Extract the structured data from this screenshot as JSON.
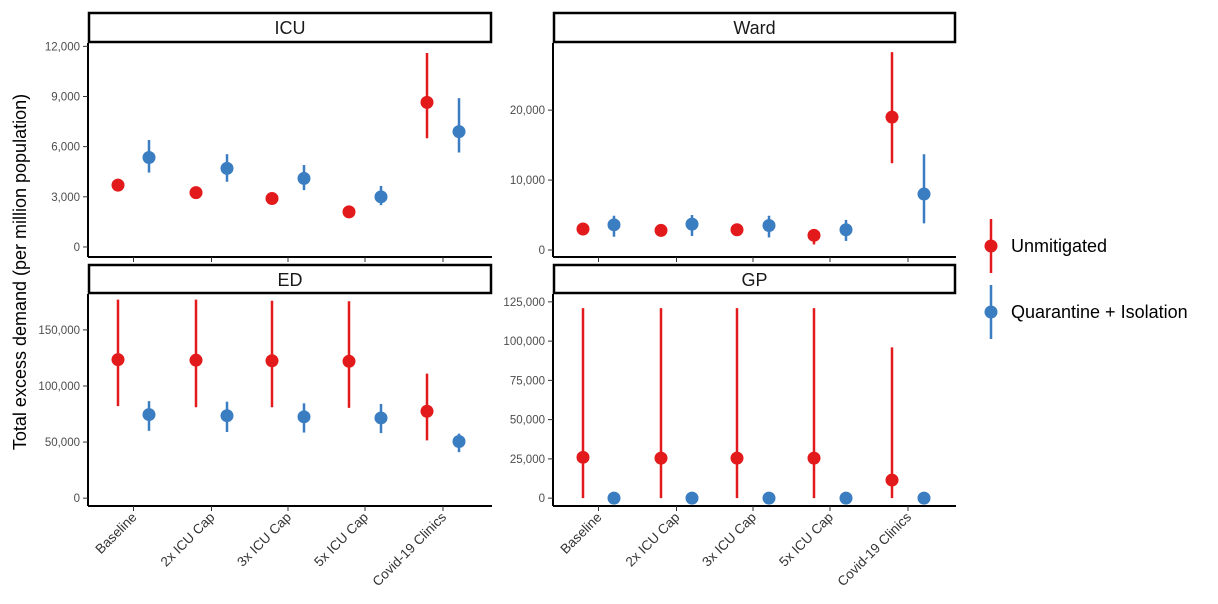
{
  "chart_data": {
    "type": "scatter",
    "ylabel": "Total excess demand (per million population)",
    "categories": [
      "Baseline",
      "2x ICU Cap",
      "3x ICU Cap",
      "5x ICU Cap",
      "Covid-19 Clinics"
    ],
    "legend": {
      "position": "right",
      "items": [
        {
          "name": "Unmitigated",
          "color": "#e31a1c"
        },
        {
          "name": "Quarantine + Isolation",
          "color": "#3a7dc1"
        }
      ]
    },
    "panels": [
      {
        "title": "ICU",
        "ylim": [
          -600,
          12200
        ],
        "ticks": [
          {
            "v": 0,
            "l": "0"
          },
          {
            "v": 3000,
            "l": "3,000"
          },
          {
            "v": 6000,
            "l": "6,000"
          },
          {
            "v": 9000,
            "l": "9,000"
          },
          {
            "v": 12000,
            "l": "12,000"
          }
        ],
        "series": [
          {
            "name": "Unmitigated",
            "points": [
              {
                "y": 3700,
                "lo": 3500,
                "hi": 3900
              },
              {
                "y": 3250,
                "lo": 3100,
                "hi": 3400
              },
              {
                "y": 2900,
                "lo": 2750,
                "hi": 3050
              },
              {
                "y": 2100,
                "lo": 2000,
                "hi": 2200
              },
              {
                "y": 8650,
                "lo": 6500,
                "hi": 11600
              }
            ]
          },
          {
            "name": "Quarantine + Isolation",
            "points": [
              {
                "y": 5350,
                "lo": 4450,
                "hi": 6400
              },
              {
                "y": 4700,
                "lo": 3900,
                "hi": 5550
              },
              {
                "y": 4100,
                "lo": 3400,
                "hi": 4900
              },
              {
                "y": 3000,
                "lo": 2500,
                "hi": 3650
              },
              {
                "y": 6900,
                "lo": 5650,
                "hi": 8900
              }
            ]
          }
        ]
      },
      {
        "title": "Ward",
        "ylim": [
          -1000,
          29600
        ],
        "ticks": [
          {
            "v": 0,
            "l": "0"
          },
          {
            "v": 10000,
            "l": "10,000"
          },
          {
            "v": 20000,
            "l": "20,000"
          }
        ],
        "series": [
          {
            "name": "Unmitigated",
            "points": [
              {
                "y": 3000,
                "lo": 2700,
                "hi": 3300
              },
              {
                "y": 2800,
                "lo": 2500,
                "hi": 3100
              },
              {
                "y": 2900,
                "lo": 2600,
                "hi": 3200
              },
              {
                "y": 2100,
                "lo": 800,
                "hi": 2500
              },
              {
                "y": 19000,
                "lo": 12400,
                "hi": 28300
              }
            ]
          },
          {
            "name": "Quarantine + Isolation",
            "points": [
              {
                "y": 3600,
                "lo": 1900,
                "hi": 4900
              },
              {
                "y": 3700,
                "lo": 2000,
                "hi": 5000
              },
              {
                "y": 3500,
                "lo": 1800,
                "hi": 4900
              },
              {
                "y": 2900,
                "lo": 1300,
                "hi": 4300
              },
              {
                "y": 8000,
                "lo": 3800,
                "hi": 13700
              }
            ]
          }
        ]
      },
      {
        "title": "ED",
        "ylim": [
          -7000,
          182000
        ],
        "ticks": [
          {
            "v": 0,
            "l": "0"
          },
          {
            "v": 50000,
            "l": "50,000"
          },
          {
            "v": 100000,
            "l": "100,000"
          },
          {
            "v": 150000,
            "l": "150,000"
          }
        ],
        "series": [
          {
            "name": "Unmitigated",
            "points": [
              {
                "y": 123500,
                "lo": 82000,
                "hi": 177000
              },
              {
                "y": 123000,
                "lo": 81000,
                "hi": 177000
              },
              {
                "y": 122500,
                "lo": 81000,
                "hi": 176000
              },
              {
                "y": 122000,
                "lo": 80500,
                "hi": 175500
              },
              {
                "y": 77500,
                "lo": 51500,
                "hi": 111000
              }
            ]
          },
          {
            "name": "Quarantine + Isolation",
            "points": [
              {
                "y": 74500,
                "lo": 60000,
                "hi": 86500
              },
              {
                "y": 73500,
                "lo": 59000,
                "hi": 86000
              },
              {
                "y": 72500,
                "lo": 58500,
                "hi": 84500
              },
              {
                "y": 71500,
                "lo": 58000,
                "hi": 84000
              },
              {
                "y": 50500,
                "lo": 41000,
                "hi": 57500
              }
            ]
          }
        ]
      },
      {
        "title": "GP",
        "ylim": [
          -5000,
          130000
        ],
        "ticks": [
          {
            "v": 0,
            "l": "0"
          },
          {
            "v": 25000,
            "l": "25,000"
          },
          {
            "v": 50000,
            "l": "50,000"
          },
          {
            "v": 75000,
            "l": "75,000"
          },
          {
            "v": 100000,
            "l": "100,000"
          },
          {
            "v": 125000,
            "l": "125,000"
          }
        ],
        "series": [
          {
            "name": "Unmitigated",
            "points": [
              {
                "y": 26000,
                "lo": 0,
                "hi": 121000
              },
              {
                "y": 25500,
                "lo": 0,
                "hi": 121000
              },
              {
                "y": 25500,
                "lo": 0,
                "hi": 121000
              },
              {
                "y": 25500,
                "lo": 0,
                "hi": 121000
              },
              {
                "y": 11500,
                "lo": 0,
                "hi": 96000
              }
            ]
          },
          {
            "name": "Quarantine + Isolation",
            "points": [
              {
                "y": 0,
                "lo": 0,
                "hi": 0
              },
              {
                "y": 0,
                "lo": 0,
                "hi": 0
              },
              {
                "y": 0,
                "lo": 0,
                "hi": 0
              },
              {
                "y": 0,
                "lo": 0,
                "hi": 0
              },
              {
                "y": 0,
                "lo": 0,
                "hi": 0
              }
            ]
          }
        ]
      }
    ]
  }
}
